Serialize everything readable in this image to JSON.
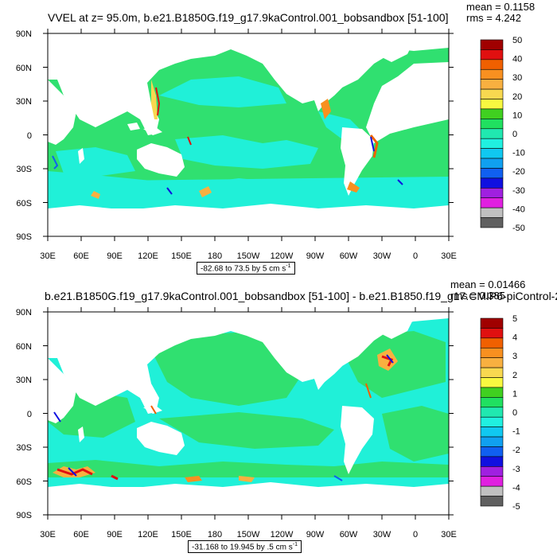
{
  "panels": [
    {
      "title": "VVEL at z=  95.0m, b.e21.B1850G.f19_g17.9kaControl.001_bobsandbox [51-100]",
      "stats": {
        "mean": "mean = 0.1158",
        "rms": "rms = 4.242"
      },
      "range_text": "-82.68 to 73.5 by 5 cm s",
      "range_unit_exp": "-1",
      "colorbar": {
        "labels": [
          "50",
          "40",
          "30",
          "20",
          "10",
          "0",
          "-10",
          "-20",
          "-30",
          "-40",
          "-50"
        ],
        "colors": [
          "#a00000",
          "#e01010",
          "#f06000",
          "#f89020",
          "#f8b040",
          "#f8d850",
          "#f8f840",
          "#40d020",
          "#20e060",
          "#20e8b0",
          "#20f0e0",
          "#10c8f0",
          "#10a0f0",
          "#1060f0",
          "#1010e0",
          "#a020e0",
          "#e020e0",
          "#c0c0c0",
          "#606060"
        ]
      }
    },
    {
      "title": "b.e21.B1850G.f19_g17.9kaControl.001_bobsandbox [51-100] - b.e21.B1850.f19_g17.CMIP6-piControl-2",
      "stats": {
        "mean": "mean = 0.01466",
        "rms": "rms = 0.385"
      },
      "range_text": "-31.168 to 19.945 by .5 cm s",
      "range_unit_exp": "-1",
      "colorbar": {
        "labels": [
          "5",
          "4",
          "3",
          "2",
          "1",
          "0",
          "-1",
          "-2",
          "-3",
          "-4",
          "-5"
        ],
        "colors": [
          "#a00000",
          "#e01010",
          "#f06000",
          "#f89020",
          "#f8b040",
          "#f8d850",
          "#f8f840",
          "#40d020",
          "#20e060",
          "#20e8b0",
          "#20f0e0",
          "#10c8f0",
          "#10a0f0",
          "#1060f0",
          "#1010e0",
          "#a020e0",
          "#e020e0",
          "#c0c0c0",
          "#606060"
        ]
      }
    }
  ],
  "axes": {
    "lat_labels": [
      "90N",
      "60N",
      "30N",
      "0",
      "30S",
      "60S",
      "90S"
    ],
    "lon_labels": [
      "30E",
      "60E",
      "90E",
      "120E",
      "150E",
      "180",
      "150W",
      "120W",
      "90W",
      "60W",
      "30W",
      "0",
      "30E"
    ]
  }
}
